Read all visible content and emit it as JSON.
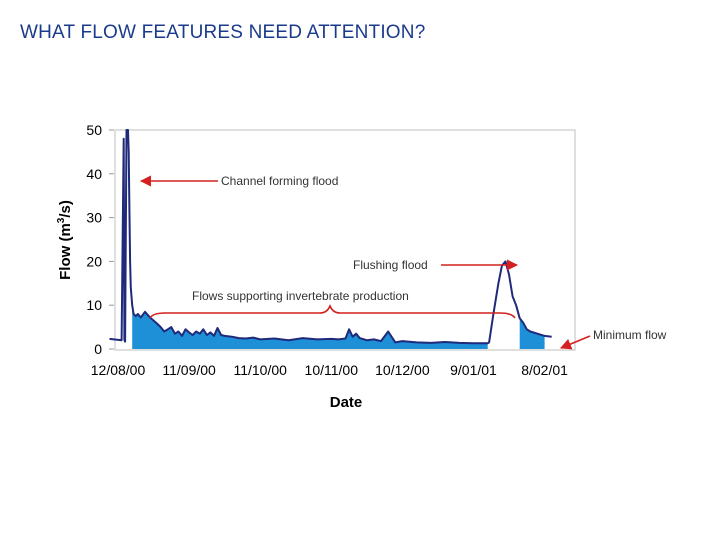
{
  "slide": {
    "title": "WHAT FLOW FEATURES NEED ATTENTION?"
  },
  "colors": {
    "line": "#1f2a7a",
    "fill": "#1e90d8",
    "annotation": "#d42020",
    "frame": "#bfbfbf"
  },
  "chart_data": {
    "type": "area",
    "xlabel": "Date",
    "ylabel": "Flow (m",
    "ylabel_sup": "3",
    "ylabel_tail": "/s)",
    "ylim": [
      0,
      50
    ],
    "xlim": [
      0,
      6.4
    ],
    "yticks": [
      0,
      10,
      20,
      30,
      40,
      50
    ],
    "xticks": [
      {
        "x": 0,
        "label": "12/08/00"
      },
      {
        "x": 1,
        "label": "11/09/00"
      },
      {
        "x": 2,
        "label": "11/10/00"
      },
      {
        "x": 3,
        "label": "10/11/00"
      },
      {
        "x": 4,
        "label": "10/12/00"
      },
      {
        "x": 5,
        "label": "9/01/01"
      },
      {
        "x": 6,
        "label": "8/02/01"
      }
    ],
    "series": [
      {
        "x": [
          -0.12,
          0.05,
          0.08,
          0.09,
          0.1,
          0.12,
          0.14,
          0.15,
          0.16,
          0.17,
          0.18,
          0.2,
          0.22,
          0.25,
          0.28,
          0.32,
          0.38,
          0.45,
          0.5,
          0.55,
          0.6,
          0.65,
          0.7,
          0.75,
          0.8,
          0.85,
          0.9,
          0.95,
          1.0,
          1.05,
          1.1,
          1.15,
          1.2,
          1.25,
          1.3,
          1.35,
          1.4,
          1.45,
          1.5,
          1.6,
          1.7,
          1.8,
          1.9,
          2.0,
          2.2,
          2.4,
          2.6,
          2.8,
          3.0,
          3.1,
          3.2,
          3.25,
          3.3,
          3.35,
          3.4,
          3.5,
          3.6,
          3.7,
          3.8,
          3.9,
          4.0,
          4.2,
          4.4,
          4.6,
          4.8,
          5.0,
          5.1,
          5.2,
          5.22,
          5.28,
          5.35,
          5.4,
          5.45,
          5.5,
          5.55,
          5.6,
          5.65,
          5.7,
          5.75,
          5.8,
          5.9,
          6.0,
          6.1
        ],
        "y": [
          2.3,
          2.0,
          48,
          2.1,
          1.7,
          50,
          52,
          45,
          32,
          20,
          14,
          10,
          8,
          7.5,
          8,
          7.2,
          8.5,
          7.2,
          6.5,
          5.8,
          5,
          4,
          4.5,
          5,
          3.5,
          4,
          3,
          4.5,
          3.8,
          3.2,
          4,
          3.5,
          4.5,
          3.2,
          3.8,
          3,
          4.8,
          3.2,
          3,
          2.8,
          2.5,
          2.4,
          2.6,
          2.2,
          2.4,
          2,
          2.5,
          2.2,
          2.3,
          2.2,
          2.4,
          4.5,
          2.8,
          3.5,
          2.5,
          2,
          2.2,
          1.8,
          4,
          1.5,
          1.8,
          1.5,
          1.4,
          1.6,
          1.4,
          1.3,
          1.3,
          1.3,
          1.5,
          8,
          15,
          19,
          20,
          17,
          12,
          10,
          7,
          6,
          4.5,
          4,
          3.5,
          3,
          2.8
        ]
      }
    ],
    "annotations": [
      {
        "label": "Channel forming flood"
      },
      {
        "label": "Flushing flood"
      },
      {
        "label": "Flows supporting invertebrate production"
      },
      {
        "label": "Minimum flow"
      }
    ]
  }
}
